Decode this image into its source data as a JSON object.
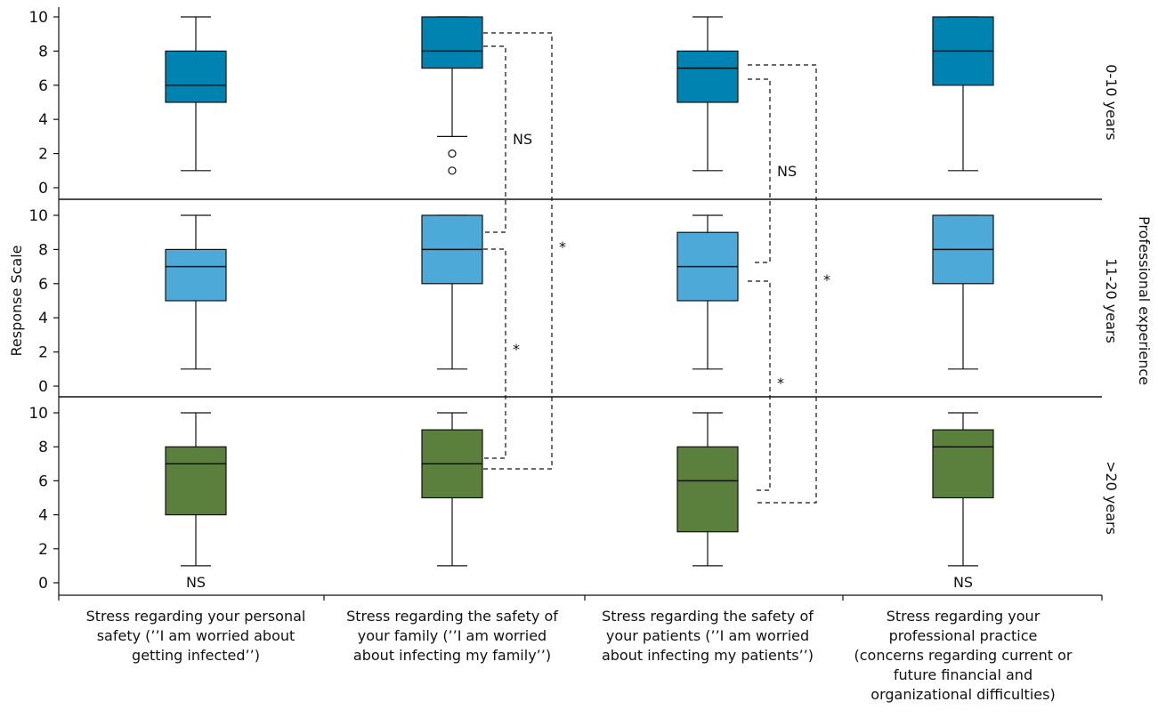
{
  "chart_data": {
    "type": "boxplot",
    "ylabel": "Response Scale",
    "right_label": "Professional experience",
    "ylim": [
      0,
      10
    ],
    "yticks": [
      "0",
      "2",
      "4",
      "6",
      "8",
      "10"
    ],
    "categories": [
      [
        "Stress regarding your personal",
        "safety (’’I am worried about",
        "getting infected’’)"
      ],
      [
        "Stress regarding the safety of",
        "your family (’’I am worried",
        "about infecting my family’’)"
      ],
      [
        "Stress regarding the safety of",
        "your patients (’’I am worried",
        "about infecting my patients’’)"
      ],
      [
        "Stress regarding your",
        "professional practice",
        "(concerns regarding current or",
        "future financial and",
        "organizational difficulties)"
      ]
    ],
    "panels": [
      {
        "name": "0-10 years",
        "color": "#0083b0",
        "boxes": [
          {
            "min": 1,
            "q1": 5,
            "median": 6,
            "q3": 8,
            "max": 10,
            "outliers": []
          },
          {
            "min": 3,
            "q1": 7,
            "median": 8,
            "q3": 10,
            "max": 10,
            "outliers": [
              2,
              1
            ]
          },
          {
            "min": 1,
            "q1": 5,
            "median": 7,
            "q3": 8,
            "max": 10,
            "outliers": []
          },
          {
            "min": 1,
            "q1": 6,
            "median": 8,
            "q3": 10,
            "max": 10,
            "outliers": []
          }
        ]
      },
      {
        "name": "11-20 years",
        "color": "#4da9d8",
        "boxes": [
          {
            "min": 1,
            "q1": 5,
            "median": 7,
            "q3": 8,
            "max": 10,
            "outliers": []
          },
          {
            "min": 1,
            "q1": 6,
            "median": 8,
            "q3": 10,
            "max": 10,
            "outliers": []
          },
          {
            "min": 1,
            "q1": 5,
            "median": 7,
            "q3": 9,
            "max": 10,
            "outliers": []
          },
          {
            "min": 1,
            "q1": 6,
            "median": 8,
            "q3": 10,
            "max": 10,
            "outliers": []
          }
        ]
      },
      {
        "name": ">20 years",
        "color": "#5b7f3c",
        "boxes": [
          {
            "min": 1,
            "q1": 4,
            "median": 7,
            "q3": 8,
            "max": 10,
            "outliers": []
          },
          {
            "min": 1,
            "q1": 5,
            "median": 7,
            "q3": 9,
            "max": 10,
            "outliers": []
          },
          {
            "min": 1,
            "q1": 3,
            "median": 6,
            "q3": 8,
            "max": 10,
            "outliers": []
          },
          {
            "min": 1,
            "q1": 5,
            "median": 8,
            "q3": 9,
            "max": 10,
            "outliers": []
          }
        ]
      }
    ],
    "annotations": [
      {
        "text": "NS",
        "category": 0,
        "panel": 2,
        "at": "below-box"
      },
      {
        "text": "NS",
        "category": 3,
        "panel": 2,
        "at": "below-box"
      }
    ],
    "comparisons": [
      {
        "category": 1,
        "from_panel": 0,
        "to_panel": 1,
        "label": "NS"
      },
      {
        "category": 1,
        "from_panel": 0,
        "to_panel": 2,
        "label": "*"
      },
      {
        "category": 1,
        "from_panel": 1,
        "to_panel": 2,
        "label": "*"
      },
      {
        "category": 2,
        "from_panel": 0,
        "to_panel": 1,
        "label": "NS"
      },
      {
        "category": 2,
        "from_panel": 0,
        "to_panel": 2,
        "label": "*"
      },
      {
        "category": 2,
        "from_panel": 1,
        "to_panel": 2,
        "label": "*"
      }
    ]
  }
}
